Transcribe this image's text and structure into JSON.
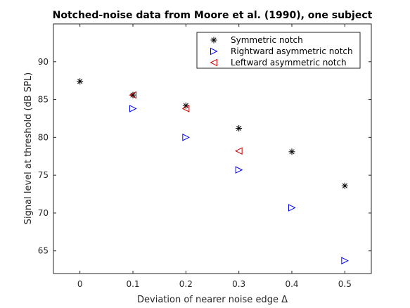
{
  "chart_data": {
    "type": "scatter",
    "title": "Notched-noise data from Moore et al. (1990), one subject",
    "xlabel": "Deviation of nearer noise edge Δ",
    "ylabel": "Signal level at threshold (dB SPL)",
    "xlim": [
      -0.05,
      0.55
    ],
    "ylim": [
      62,
      95
    ],
    "xticks": [
      0,
      0.1,
      0.2,
      0.3,
      0.4,
      0.5
    ],
    "xtick_labels": [
      "0",
      "0.1",
      "0.2",
      "0.3",
      "0.4",
      "0.5"
    ],
    "yticks": [
      65,
      70,
      75,
      80,
      85,
      90
    ],
    "ytick_labels": [
      "65",
      "70",
      "75",
      "80",
      "85",
      "90"
    ],
    "grid": false,
    "legend_position": "top-right",
    "series": [
      {
        "name": "Symmetric notch",
        "marker": "asterisk",
        "color": "#000000",
        "points": [
          {
            "x": 0.0,
            "y": 87.4
          },
          {
            "x": 0.1,
            "y": 85.6
          },
          {
            "x": 0.2,
            "y": 84.2
          },
          {
            "x": 0.3,
            "y": 81.2
          },
          {
            "x": 0.4,
            "y": 78.1
          },
          {
            "x": 0.5,
            "y": 73.6
          }
        ]
      },
      {
        "name": "Rightward asymmetric notch",
        "marker": "triangle-right",
        "color": "#0000ff",
        "points": [
          {
            "x": 0.1,
            "y": 83.8
          },
          {
            "x": 0.2,
            "y": 80.0
          },
          {
            "x": 0.3,
            "y": 75.7
          },
          {
            "x": 0.4,
            "y": 70.7
          },
          {
            "x": 0.5,
            "y": 63.7
          }
        ]
      },
      {
        "name": "Leftward asymmetric notch",
        "marker": "triangle-left",
        "color": "#cc0000",
        "points": [
          {
            "x": 0.1,
            "y": 85.6
          },
          {
            "x": 0.2,
            "y": 83.8
          },
          {
            "x": 0.3,
            "y": 78.2
          }
        ]
      }
    ]
  }
}
